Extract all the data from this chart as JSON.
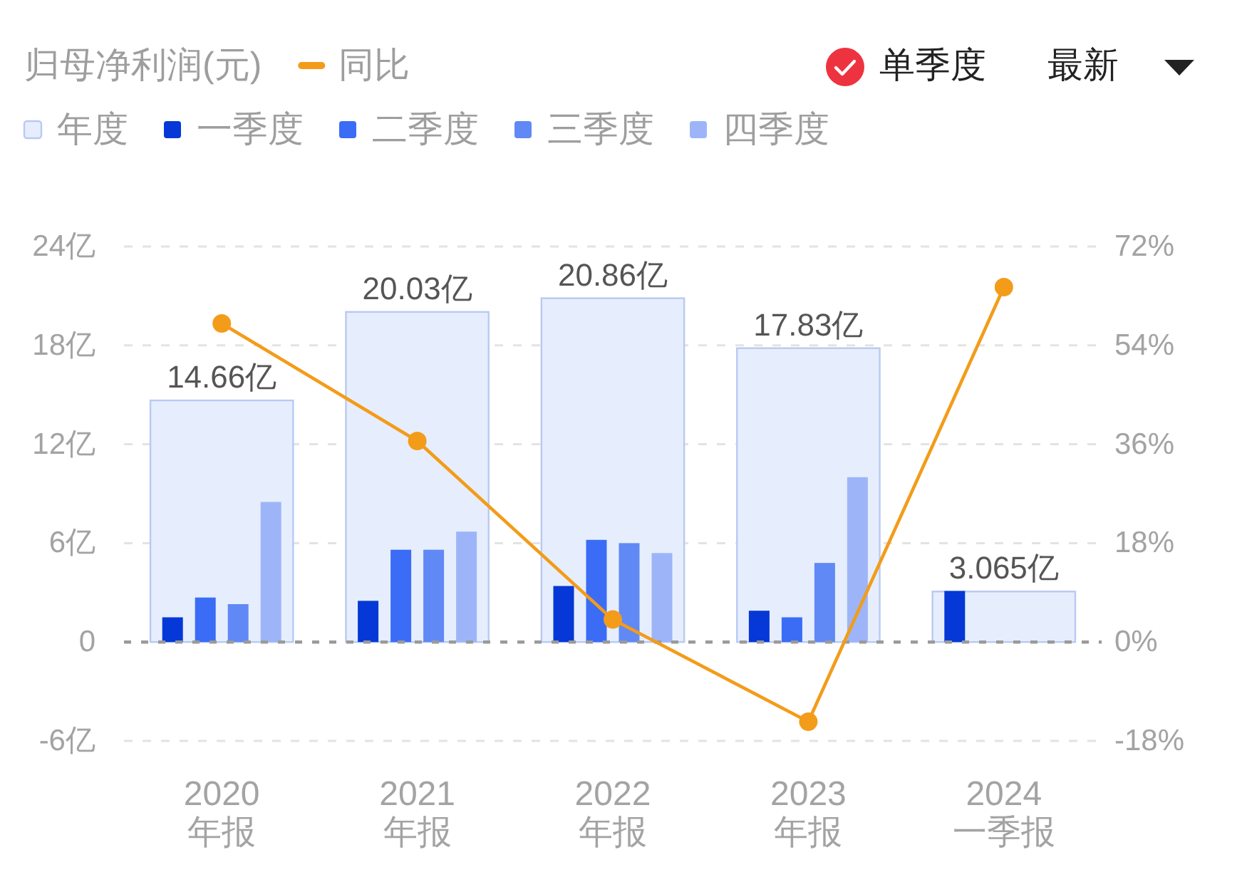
{
  "chart_data": {
    "type": "bar",
    "title": "归母净利润(元)",
    "categories": [
      "2020\n年报",
      "2021\n年报",
      "2022\n年报",
      "2023\n年报",
      "2024\n一季报"
    ],
    "series": [
      {
        "name": "年度",
        "color": "#e6eefd",
        "values": [
          14.66,
          20.03,
          20.86,
          17.83,
          3.065
        ],
        "value_labels": [
          "14.66亿",
          "20.03亿",
          "20.86亿",
          "17.83亿",
          "3.065亿"
        ]
      },
      {
        "name": "一季度",
        "color": "#0538d6",
        "values": [
          1.5,
          2.5,
          3.4,
          1.9,
          3.1
        ]
      },
      {
        "name": "二季度",
        "color": "#3a6cf6",
        "values": [
          2.7,
          5.6,
          6.2,
          1.5,
          null
        ]
      },
      {
        "name": "三季度",
        "color": "#6089f5",
        "values": [
          2.3,
          5.6,
          6.0,
          4.8,
          null
        ]
      },
      {
        "name": "四季度",
        "color": "#9db5f8",
        "values": [
          8.5,
          6.7,
          5.4,
          10.0,
          null
        ]
      },
      {
        "name": "同比",
        "type": "line",
        "axis": "y2",
        "color": "#f39c1a",
        "values": [
          58,
          36.6,
          4.1,
          -14.5,
          64.6
        ]
      }
    ],
    "ylim": [
      -6,
      24
    ],
    "yticks": [
      {
        "value": -6,
        "label": "-6亿"
      },
      0,
      {
        "value": 6,
        "label": "6亿"
      },
      {
        "value": 12,
        "label": "12亿"
      },
      {
        "value": 18,
        "label": "18亿"
      },
      {
        "value": 24,
        "label": "24亿"
      }
    ],
    "y2lim": [
      -18,
      72
    ],
    "y2ticks": [
      {
        "value": -18,
        "label": "-18%"
      },
      {
        "value": 0,
        "label": "0%"
      },
      {
        "value": 18,
        "label": "18%"
      },
      {
        "value": 36,
        "label": "36%"
      },
      {
        "value": 54,
        "label": "54%"
      },
      {
        "value": 72,
        "label": "72%"
      }
    ],
    "ref_lines": [
      {
        "axis": "y",
        "value": 0,
        "color": "#9a9a9a",
        "line_style": "dashed"
      }
    ],
    "grid": "y",
    "legend": "top left",
    "marker": "circle",
    "line_style": "solid",
    "annotations": [
      "单季度",
      "最新"
    ]
  }
}
